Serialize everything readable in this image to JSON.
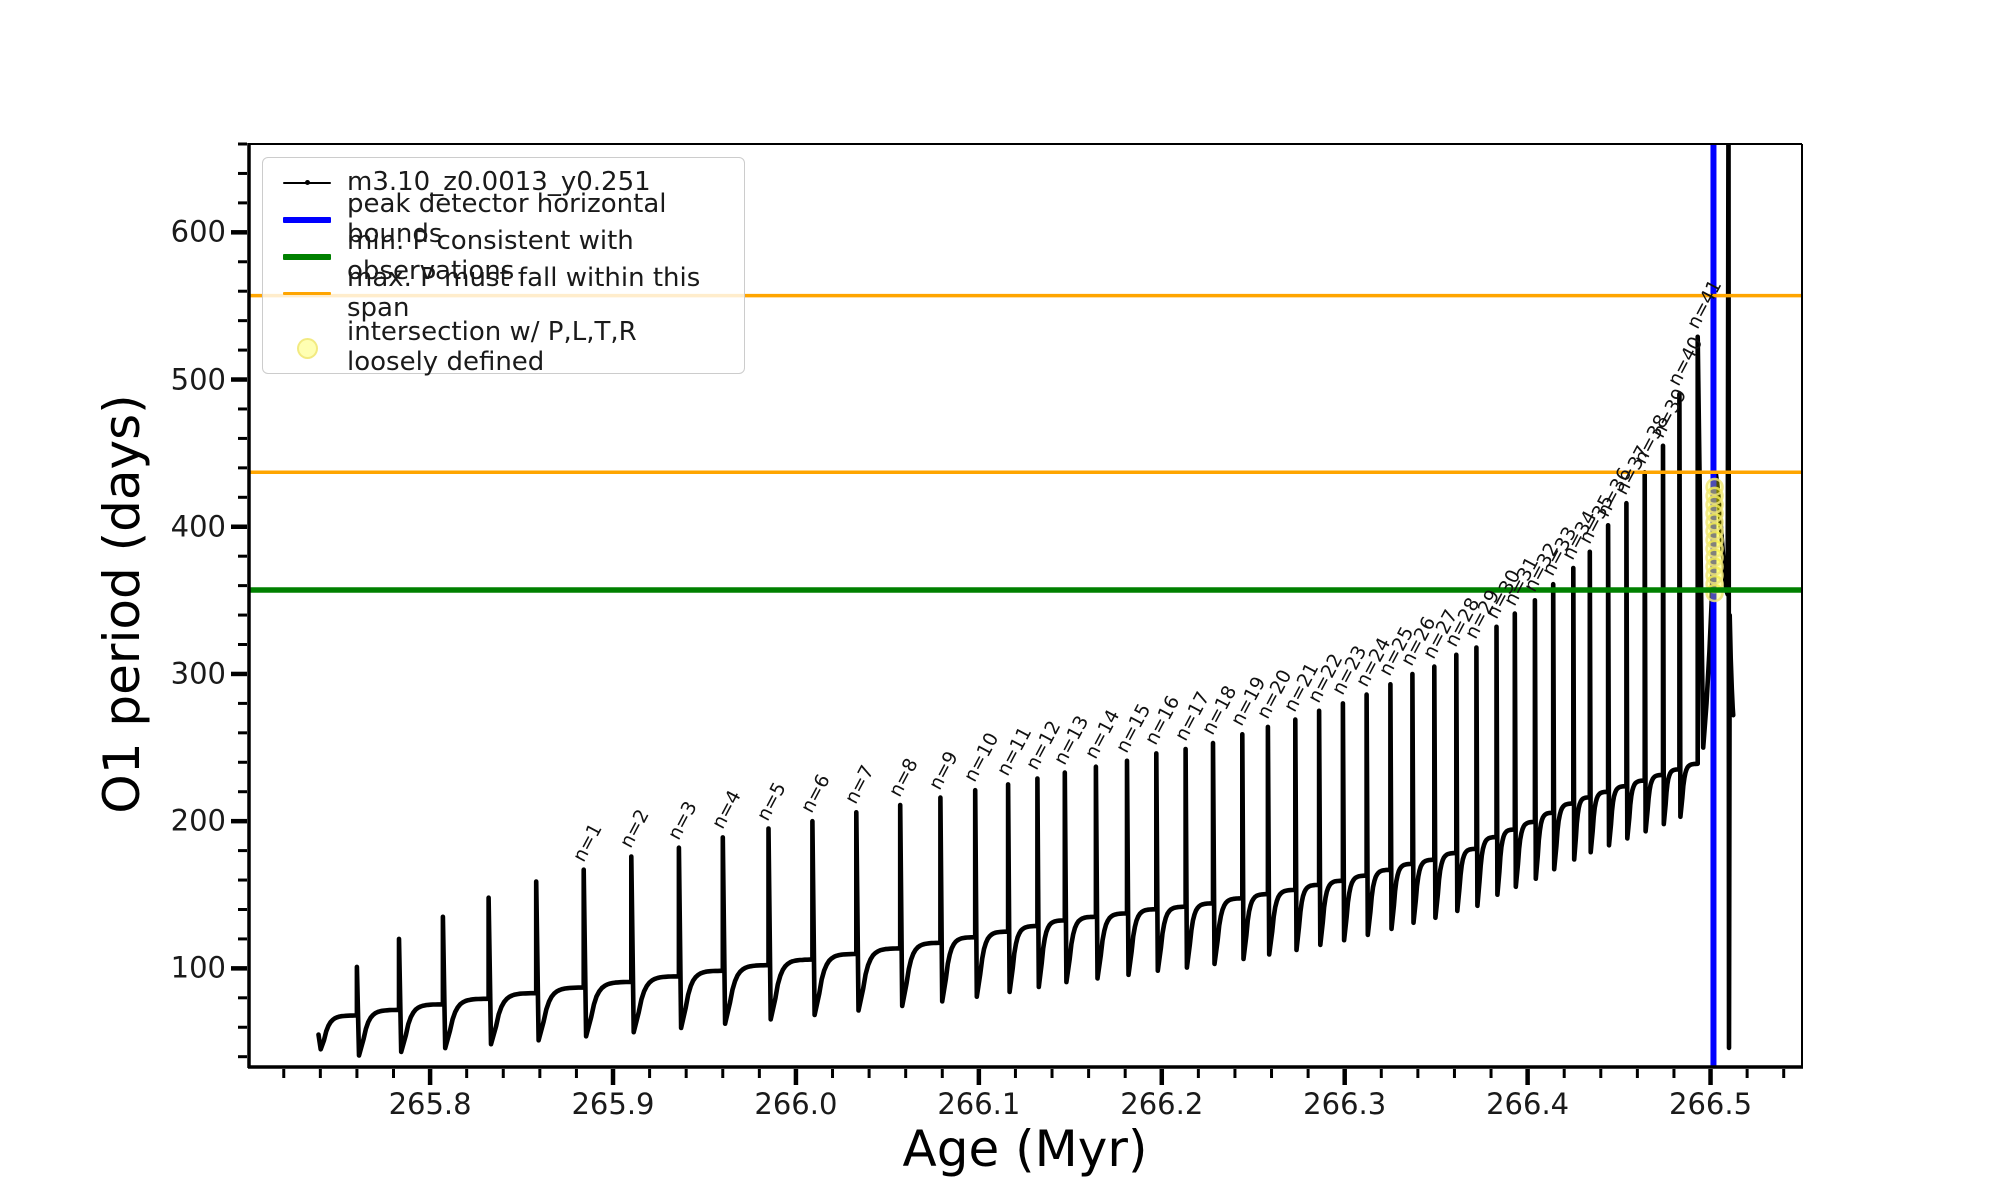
{
  "figure": {
    "xlabel": "Age (Myr)",
    "ylabel": "O1 period (days)"
  },
  "legend": {
    "entries": [
      {
        "label": "m3.10_z0.0013_y0.251",
        "swatch": "black-line-with-dot-marker",
        "color": "#000000"
      },
      {
        "label": "peak detector horizontal bounds",
        "swatch": "thick-line",
        "color": "#0000ff"
      },
      {
        "label": "min. P consistent with observations",
        "swatch": "thick-line",
        "color": "#008000"
      },
      {
        "label": "max. P must fall within this span",
        "swatch": "line",
        "color": "#ffa500"
      },
      {
        "label_line1": "intersection w/ P,L,T,R",
        "label_line2": "loosely defined",
        "swatch": "pale-yellow-circle",
        "color": "#ffff99"
      }
    ]
  },
  "chart_data": {
    "type": "line",
    "title": "",
    "xlabel": "Age (Myr)",
    "ylabel": "O1 period (days)",
    "xlim": [
      265.701,
      266.55
    ],
    "ylim": [
      33,
      660
    ],
    "grid": false,
    "legend_position": "upper left",
    "x_major_ticks": [
      265.8,
      265.9,
      266.0,
      266.1,
      266.2,
      266.3,
      266.4,
      266.5
    ],
    "x_major_tick_labels": [
      "265.8",
      "265.9",
      "266.0",
      "266.1",
      "266.2",
      "266.3",
      "266.4",
      "266.5"
    ],
    "x_minor_step": 0.02,
    "y_major_ticks": [
      100,
      200,
      300,
      400,
      500,
      600
    ],
    "y_major_tick_labels": [
      "100",
      "200",
      "300",
      "400",
      "500",
      "600"
    ],
    "y_minor_step": 20,
    "track_name": "m3.10_z0.0013_y0.251",
    "track_start": {
      "age": 265.739,
      "period": 55
    },
    "spike_label_prefix": "n=",
    "spikes": [
      {
        "n": null,
        "age": 265.76,
        "peak": 101
      },
      {
        "n": null,
        "age": 265.783,
        "peak": 120
      },
      {
        "n": null,
        "age": 265.807,
        "peak": 135
      },
      {
        "n": null,
        "age": 265.832,
        "peak": 148
      },
      {
        "n": null,
        "age": 265.858,
        "peak": 159
      },
      {
        "n": 1,
        "age": 265.884,
        "peak": 167
      },
      {
        "n": 2,
        "age": 265.91,
        "peak": 176
      },
      {
        "n": 3,
        "age": 265.936,
        "peak": 182
      },
      {
        "n": 4,
        "age": 265.96,
        "peak": 189
      },
      {
        "n": 5,
        "age": 265.985,
        "peak": 195
      },
      {
        "n": 6,
        "age": 266.009,
        "peak": 200
      },
      {
        "n": 7,
        "age": 266.033,
        "peak": 206
      },
      {
        "n": 8,
        "age": 266.057,
        "peak": 211
      },
      {
        "n": 9,
        "age": 266.079,
        "peak": 216
      },
      {
        "n": 10,
        "age": 266.098,
        "peak": 221
      },
      {
        "n": 11,
        "age": 266.116,
        "peak": 225
      },
      {
        "n": 12,
        "age": 266.132,
        "peak": 229
      },
      {
        "n": 13,
        "age": 266.147,
        "peak": 233
      },
      {
        "n": 14,
        "age": 266.164,
        "peak": 237
      },
      {
        "n": 15,
        "age": 266.181,
        "peak": 241
      },
      {
        "n": 16,
        "age": 266.197,
        "peak": 246
      },
      {
        "n": 17,
        "age": 266.213,
        "peak": 249
      },
      {
        "n": 18,
        "age": 266.228,
        "peak": 253
      },
      {
        "n": 19,
        "age": 266.244,
        "peak": 259
      },
      {
        "n": 20,
        "age": 266.258,
        "peak": 264
      },
      {
        "n": 21,
        "age": 266.273,
        "peak": 269
      },
      {
        "n": 22,
        "age": 266.286,
        "peak": 275
      },
      {
        "n": 23,
        "age": 266.299,
        "peak": 280
      },
      {
        "n": 24,
        "age": 266.312,
        "peak": 286
      },
      {
        "n": 25,
        "age": 266.325,
        "peak": 293
      },
      {
        "n": 26,
        "age": 266.337,
        "peak": 300
      },
      {
        "n": 27,
        "age": 266.349,
        "peak": 305
      },
      {
        "n": 28,
        "age": 266.361,
        "peak": 313
      },
      {
        "n": 29,
        "age": 266.372,
        "peak": 318
      },
      {
        "n": 30,
        "age": 266.383,
        "peak": 332
      },
      {
        "n": 31,
        "age": 266.393,
        "peak": 341
      },
      {
        "n": 32,
        "age": 266.404,
        "peak": 350
      },
      {
        "n": 33,
        "age": 266.414,
        "peak": 361
      },
      {
        "n": 34,
        "age": 266.425,
        "peak": 372
      },
      {
        "n": 35,
        "age": 266.434,
        "peak": 383
      },
      {
        "n": 36,
        "age": 266.444,
        "peak": 401
      },
      {
        "n": 37,
        "age": 266.454,
        "peak": 416
      },
      {
        "n": 38,
        "age": 266.464,
        "peak": 437
      },
      {
        "n": 39,
        "age": 266.474,
        "peak": 455
      },
      {
        "n": 40,
        "age": 266.483,
        "peak": 490
      },
      {
        "n": 41,
        "age": 266.493,
        "peak": 529
      }
    ],
    "final_rise": [
      [
        266.496,
        250
      ],
      [
        266.4978,
        280
      ],
      [
        266.4994,
        315
      ],
      [
        266.5006,
        348
      ],
      [
        266.5014,
        380
      ],
      [
        266.502,
        410
      ],
      [
        266.5024,
        428
      ],
      [
        266.5029,
        436
      ],
      [
        266.5036,
        430
      ],
      [
        266.5048,
        414
      ],
      [
        266.5062,
        391
      ],
      [
        266.5076,
        369
      ],
      [
        266.5088,
        356
      ],
      [
        266.5094,
        354
      ]
    ],
    "final_spike": [
      [
        266.5098,
        700
      ],
      [
        266.5101,
        46
      ],
      [
        266.5105,
        340
      ]
    ],
    "final_tail": [
      [
        266.511,
        311
      ],
      [
        266.5116,
        290
      ],
      [
        266.5121,
        277
      ],
      [
        266.5124,
        272
      ]
    ],
    "hlines": [
      {
        "name": "max-p-upper",
        "label": "max. P must fall within this span",
        "period": 557,
        "color": "#ffa500",
        "width": 3.5
      },
      {
        "name": "max-p-lower",
        "label": "max. P must fall within this span",
        "period": 437,
        "color": "#ffa500",
        "width": 3.5
      },
      {
        "name": "min-p",
        "label": "min. P consistent with observations",
        "period": 357,
        "color": "#008000",
        "width": 5.5
      }
    ],
    "vlines": [
      {
        "name": "peak-detector-bound",
        "label": "peak detector horizontal bounds",
        "age": 266.5016,
        "color": "#0000ff",
        "width": 6
      }
    ],
    "intersection_markers": {
      "age": 266.5022,
      "periods": [
        355,
        361,
        367,
        373,
        379,
        385,
        391,
        397,
        403,
        409,
        415,
        421,
        427
      ],
      "fill": "rgba(255,255,0,0.30)",
      "edge": "rgba(240,230,120,0.85)",
      "radius": 8
    }
  }
}
